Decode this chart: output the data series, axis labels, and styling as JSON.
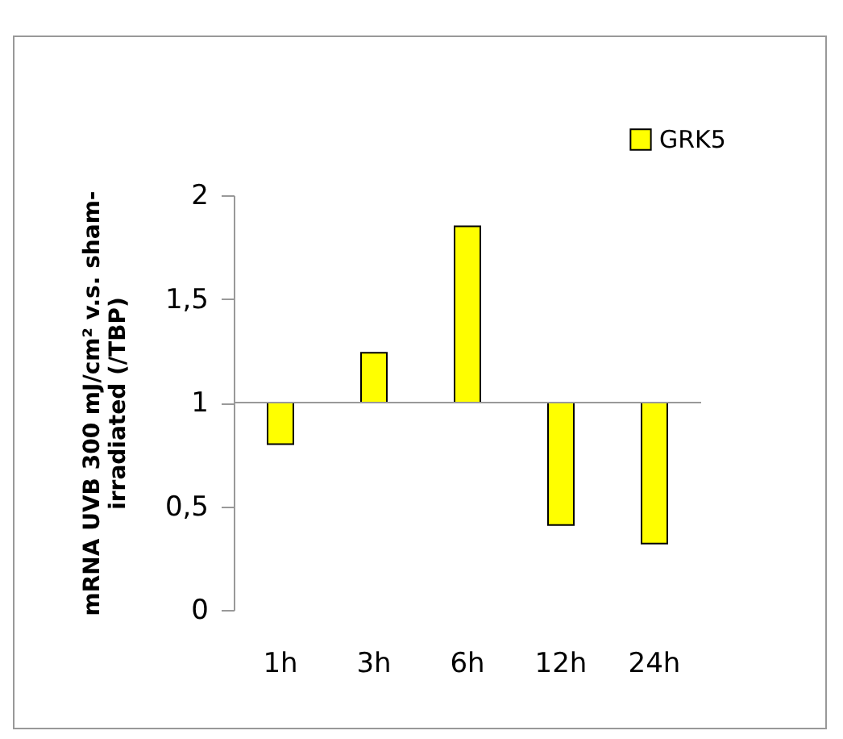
{
  "chart_data": {
    "type": "bar",
    "ylabel": "mRNA UVB 300 mJ/cm² v.s. sham-irradiated (/TBP)",
    "categories": [
      "1h",
      "3h",
      "6h",
      "12h",
      "24h"
    ],
    "series": [
      {
        "name": "GRK5",
        "color": "#ffff00",
        "values": [
          -0.2,
          0.24,
          0.85,
          -0.59,
          -0.68
        ],
        "base": [
          1,
          1,
          1,
          1,
          1
        ]
      }
    ],
    "ylim": [
      0,
      2
    ],
    "yticks": [
      0,
      {
        "value": 0.5,
        "label": "0,5"
      },
      1,
      {
        "value": 1.5,
        "label": "1,5"
      },
      2
    ],
    "ref_lines": [
      {
        "axis": "y",
        "value": 1,
        "color": "#999999"
      }
    ],
    "legend": "top right"
  }
}
